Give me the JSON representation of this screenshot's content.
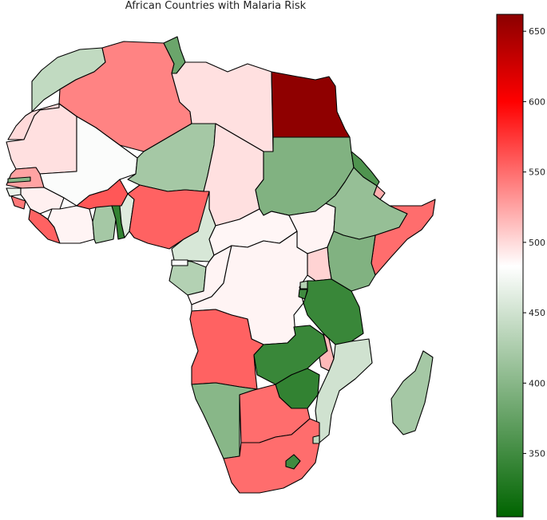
{
  "title": "African Countries with Malaria Risk",
  "colormap": {
    "min": 305,
    "max": 662,
    "stops": [
      {
        "value": 305,
        "color": "#006400"
      },
      {
        "value": 483,
        "color": "#ffffff"
      },
      {
        "value": 600,
        "color": "#ff0000"
      },
      {
        "value": 662,
        "color": "#8b0000"
      }
    ],
    "ticks": [
      "350",
      "400",
      "450",
      "500",
      "550",
      "600",
      "650"
    ],
    "tick_values": [
      350,
      400,
      450,
      500,
      550,
      600,
      650
    ]
  },
  "regions": [
    {
      "id": "morocco",
      "value": 440
    },
    {
      "id": "western-sahara",
      "value": 500
    },
    {
      "id": "algeria",
      "value": 540
    },
    {
      "id": "tunisia",
      "value": 380
    },
    {
      "id": "libya",
      "value": 497
    },
    {
      "id": "egypt",
      "value": 660
    },
    {
      "id": "mauritania",
      "value": 497
    },
    {
      "id": "mali",
      "value": 480
    },
    {
      "id": "niger",
      "value": 420
    },
    {
      "id": "chad",
      "value": 497
    },
    {
      "id": "sudan",
      "value": 395
    },
    {
      "id": "senegal",
      "value": 525
    },
    {
      "id": "gambia",
      "value": 400
    },
    {
      "id": "guinea-bissau",
      "value": 470
    },
    {
      "id": "guinea",
      "value": 490
    },
    {
      "id": "sierra-leone",
      "value": 545
    },
    {
      "id": "liberia",
      "value": 555
    },
    {
      "id": "ivory-coast",
      "value": 488
    },
    {
      "id": "burkina-faso",
      "value": 560
    },
    {
      "id": "ghana",
      "value": 420
    },
    {
      "id": "togo",
      "value": 340
    },
    {
      "id": "benin",
      "value": 460
    },
    {
      "id": "nigeria",
      "value": 555
    },
    {
      "id": "cameroon",
      "value": 455
    },
    {
      "id": "central-african-republic",
      "value": 487
    },
    {
      "id": "south-sudan",
      "value": 488
    },
    {
      "id": "eritrea",
      "value": 360
    },
    {
      "id": "djibouti",
      "value": 520
    },
    {
      "id": "ethiopia",
      "value": 410
    },
    {
      "id": "somalia",
      "value": 550
    },
    {
      "id": "kenya",
      "value": 395
    },
    {
      "id": "uganda",
      "value": 503
    },
    {
      "id": "gabon",
      "value": 430
    },
    {
      "id": "equatorial-guinea",
      "value": 480
    },
    {
      "id": "congo",
      "value": 488
    },
    {
      "id": "dr-congo",
      "value": 488
    },
    {
      "id": "rwanda",
      "value": 430
    },
    {
      "id": "burundi",
      "value": 350
    },
    {
      "id": "tanzania",
      "value": 345
    },
    {
      "id": "angola",
      "value": 555
    },
    {
      "id": "zambia",
      "value": 345
    },
    {
      "id": "malawi",
      "value": 515
    },
    {
      "id": "mozambique",
      "value": 450
    },
    {
      "id": "zimbabwe",
      "value": 340
    },
    {
      "id": "namibia",
      "value": 400
    },
    {
      "id": "botswana",
      "value": 550
    },
    {
      "id": "south-africa",
      "value": 550
    },
    {
      "id": "lesotho",
      "value": 350
    },
    {
      "id": "eswatini",
      "value": 440
    },
    {
      "id": "madagascar",
      "value": 420
    }
  ]
}
